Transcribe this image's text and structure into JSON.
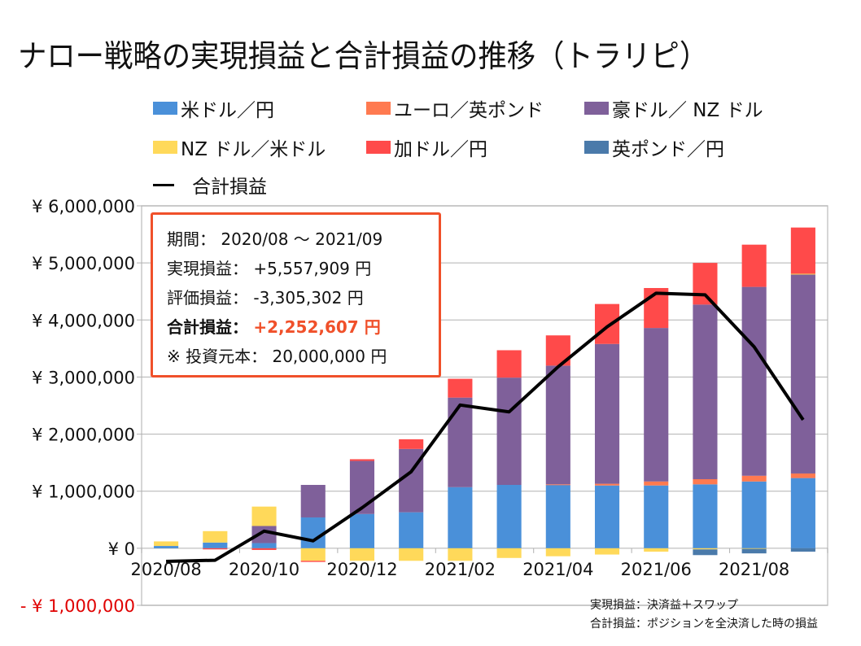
{
  "title": "ナロー戦略の実現損益と合計損益の推移（トラリピ）",
  "legend": [
    {
      "label": "米ドル／円",
      "color": "#4a90d9",
      "kind": "bar"
    },
    {
      "label": "ユーロ／英ポンド",
      "color": "#ff7a50",
      "kind": "bar"
    },
    {
      "label": "豪ドル／ NZ ドル",
      "color": "#7f609a",
      "kind": "bar"
    },
    {
      "label": "NZ ドル／米ドル",
      "color": "#ffd95a",
      "kind": "bar"
    },
    {
      "label": "加ドル／円",
      "color": "#ff4a4a",
      "kind": "bar"
    },
    {
      "label": "英ポンド／円",
      "color": "#4a7aaa",
      "kind": "bar"
    },
    {
      "label": "合計損益",
      "color": "#000000",
      "kind": "line"
    }
  ],
  "info_box": {
    "period_label": "期間：",
    "period_value": "2020/08 ～ 2021/09",
    "realized_label": "実現損益：",
    "realized_value": "+5,557,909 円",
    "unrealized_label": "評価損益：",
    "unrealized_value": "-3,305,302 円",
    "total_label": "合計損益：",
    "total_value": "+2,252,607 円",
    "principal_label": "※ 投資元本：",
    "principal_value": "20,000,000 円",
    "border_color": "#f0502a"
  },
  "notes": [
    "実現損益：決済益＋スワップ",
    "合計損益：ポジションを全決済した時の損益"
  ],
  "chart_data": {
    "type": "bar",
    "stacked": true,
    "title": "ナロー戦略の実現損益と合計損益の推移（トラリピ）",
    "xlabel": "",
    "ylabel": "",
    "ylim": [
      -1000000,
      6000000
    ],
    "yticks": [
      -1000000,
      0,
      1000000,
      2000000,
      3000000,
      4000000,
      5000000,
      6000000
    ],
    "ytick_labels": [
      "- ¥ 1,000,000",
      "¥ 0",
      "¥ 1,000,000",
      "¥ 2,000,000",
      "¥ 3,000,000",
      "¥ 4,000,000",
      "¥ 5,000,000",
      "¥ 6,000,000"
    ],
    "negative_tick_color": "#e00000",
    "grid": true,
    "legend_position": "top",
    "categories": [
      "2020/08",
      "2020/09",
      "2020/10",
      "2020/11",
      "2020/12",
      "2021/01",
      "2021/02",
      "2021/03",
      "2021/04",
      "2021/05",
      "2021/06",
      "2021/07",
      "2021/08",
      "2021/09"
    ],
    "xtick_labels": [
      "2020/08",
      "2020/10",
      "2020/12",
      "2021/02",
      "2021/04",
      "2021/06",
      "2021/08"
    ],
    "series": [
      {
        "name": "米ドル／円",
        "color": "#4a90d9",
        "type": "bar",
        "values": [
          40000,
          100000,
          90000,
          540000,
          600000,
          630000,
          1070000,
          1110000,
          1110000,
          1100000,
          1100000,
          1120000,
          1170000,
          1230000
        ]
      },
      {
        "name": "ユーロ／英ポンド",
        "color": "#ff7a50",
        "type": "bar",
        "values": [
          0,
          0,
          0,
          0,
          0,
          0,
          0,
          0,
          10000,
          30000,
          70000,
          90000,
          100000,
          80000
        ]
      },
      {
        "name": "豪ドル／ NZ ドル",
        "color": "#7f609a",
        "type": "bar",
        "values": [
          0,
          0,
          300000,
          570000,
          930000,
          1110000,
          1570000,
          1880000,
          2080000,
          2450000,
          2690000,
          3060000,
          3310000,
          3490000
        ]
      },
      {
        "name": "NZ ドル／米ドル",
        "color": "#ffd95a",
        "type": "bar",
        "values": [
          80000,
          200000,
          340000,
          -220000,
          -220000,
          -220000,
          -220000,
          -170000,
          -140000,
          -110000,
          -60000,
          -20000,
          -10000,
          10000
        ]
      },
      {
        "name": "加ドル／円",
        "color": "#ff4a4a",
        "type": "bar",
        "values": [
          0,
          -20000,
          -30000,
          -20000,
          30000,
          170000,
          330000,
          480000,
          530000,
          700000,
          700000,
          730000,
          740000,
          810000
        ]
      },
      {
        "name": "英ポンド／円",
        "color": "#4a7aaa",
        "type": "bar",
        "values": [
          0,
          0,
          0,
          0,
          0,
          0,
          0,
          0,
          0,
          0,
          0,
          -100000,
          -80000,
          -60000
        ]
      },
      {
        "name": "合計損益",
        "color": "#000000",
        "type": "line",
        "values": [
          -230000,
          -210000,
          300000,
          130000,
          710000,
          1340000,
          2510000,
          2390000,
          3180000,
          3880000,
          4470000,
          4440000,
          3530000,
          2250000
        ]
      }
    ]
  }
}
